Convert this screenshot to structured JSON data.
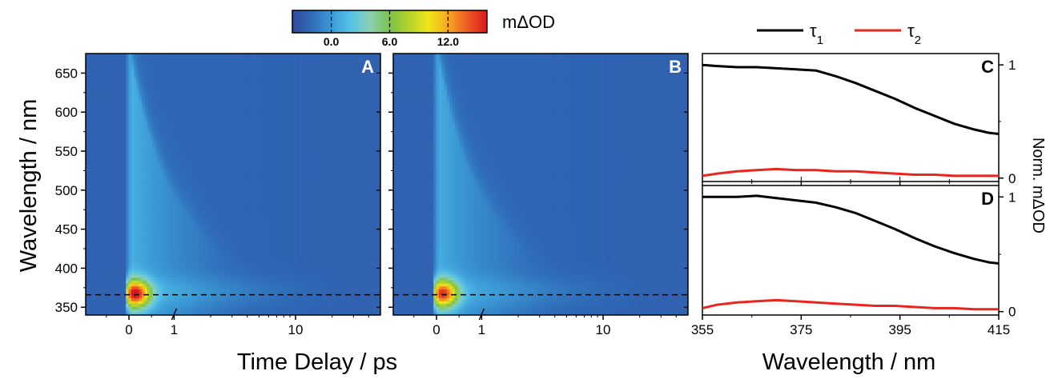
{
  "chart_data": [
    {
      "id": "A",
      "type": "heatmap",
      "panel_label": "A",
      "xlabel": "Time Delay / ps",
      "x_scale": "linear for t ≤ 1 ps, log for t > 1 ps",
      "xlim": [
        -0.5,
        50
      ],
      "x_ticks": [
        "0",
        "1",
        "10"
      ],
      "ylabel": "Wavelength / nm",
      "ylim": [
        340,
        675
      ],
      "y_ticks": [
        "350",
        "400",
        "450",
        "500",
        "550",
        "600",
        "650"
      ],
      "dashed_line_wavelength": 366,
      "features": {
        "peak": {
          "time": 0.15,
          "wavelength": 368,
          "value": 15
        },
        "broad_band_edge_at_0.2ps": 675
      }
    },
    {
      "id": "B",
      "type": "heatmap",
      "panel_label": "B",
      "xlabel": "Time Delay / ps",
      "x_scale": "linear for t ≤ 1 ps, log for t > 1 ps",
      "xlim": [
        -0.5,
        50
      ],
      "x_ticks": [
        "0",
        "1",
        "10"
      ],
      "ylim": [
        340,
        675
      ],
      "dashed_line_wavelength": 366,
      "features": {
        "peak": {
          "time": 0.15,
          "wavelength": 368,
          "value": 14
        }
      }
    },
    {
      "id": "C",
      "type": "line",
      "panel_label": "C",
      "xlim": [
        355,
        415
      ],
      "ylim": [
        -0.03,
        1.1
      ],
      "y_ticks": [
        "0",
        "1"
      ],
      "series": [
        {
          "name": "τ1",
          "color": "#000000",
          "x": [
            355,
            358,
            362,
            366,
            370,
            374,
            378,
            382,
            386,
            390,
            394,
            398,
            402,
            406,
            410,
            413,
            415
          ],
          "y": [
            1.0,
            0.99,
            0.98,
            0.98,
            0.97,
            0.96,
            0.95,
            0.9,
            0.84,
            0.77,
            0.7,
            0.62,
            0.55,
            0.48,
            0.43,
            0.4,
            0.39
          ]
        },
        {
          "name": "τ2",
          "color": "#e8261c",
          "x": [
            355,
            358,
            362,
            366,
            370,
            374,
            378,
            382,
            386,
            390,
            394,
            398,
            402,
            406,
            410,
            413,
            415
          ],
          "y": [
            0.02,
            0.04,
            0.06,
            0.07,
            0.08,
            0.07,
            0.07,
            0.06,
            0.06,
            0.05,
            0.04,
            0.03,
            0.03,
            0.02,
            0.02,
            0.02,
            0.02
          ]
        }
      ]
    },
    {
      "id": "D",
      "type": "line",
      "panel_label": "D",
      "xlabel": "Wavelength / nm",
      "xlim": [
        355,
        415
      ],
      "x_ticks": [
        "355",
        "375",
        "395",
        "415"
      ],
      "ylim": [
        -0.03,
        1.1
      ],
      "y_ticks": [
        "0",
        "1"
      ],
      "series": [
        {
          "name": "τ1",
          "color": "#000000",
          "x": [
            355,
            358,
            362,
            366,
            370,
            374,
            378,
            382,
            386,
            390,
            394,
            398,
            402,
            406,
            410,
            413,
            415
          ],
          "y": [
            1.0,
            1.0,
            1.0,
            1.01,
            0.99,
            0.97,
            0.95,
            0.91,
            0.86,
            0.79,
            0.72,
            0.64,
            0.57,
            0.51,
            0.46,
            0.43,
            0.42
          ]
        },
        {
          "name": "τ2",
          "color": "#e8261c",
          "x": [
            355,
            358,
            362,
            366,
            370,
            374,
            378,
            382,
            386,
            390,
            394,
            398,
            402,
            406,
            410,
            413,
            415
          ],
          "y": [
            0.03,
            0.06,
            0.08,
            0.09,
            0.1,
            0.09,
            0.08,
            0.07,
            0.06,
            0.05,
            0.05,
            0.04,
            0.03,
            0.03,
            0.02,
            0.02,
            0.02
          ]
        }
      ]
    }
  ],
  "colorbar": {
    "label": "mΔOD",
    "range": [
      -4,
      16
    ],
    "ticks": [
      "0.0",
      "6.0",
      "12.0"
    ],
    "tick_values": [
      0,
      6,
      12
    ],
    "colors": [
      "#31499c",
      "#2f6cb8",
      "#3b9ad6",
      "#56c3e8",
      "#8ed0b2",
      "#7cc24a",
      "#b5d32b",
      "#f0e617",
      "#f6a623",
      "#ee5a24",
      "#d7191c"
    ]
  },
  "right_axis_label": "Norm. mΔOD",
  "legend": [
    {
      "label": "τ",
      "sub": "1",
      "color": "#000000"
    },
    {
      "label": "τ",
      "sub": "2",
      "color": "#e8261c"
    }
  ]
}
